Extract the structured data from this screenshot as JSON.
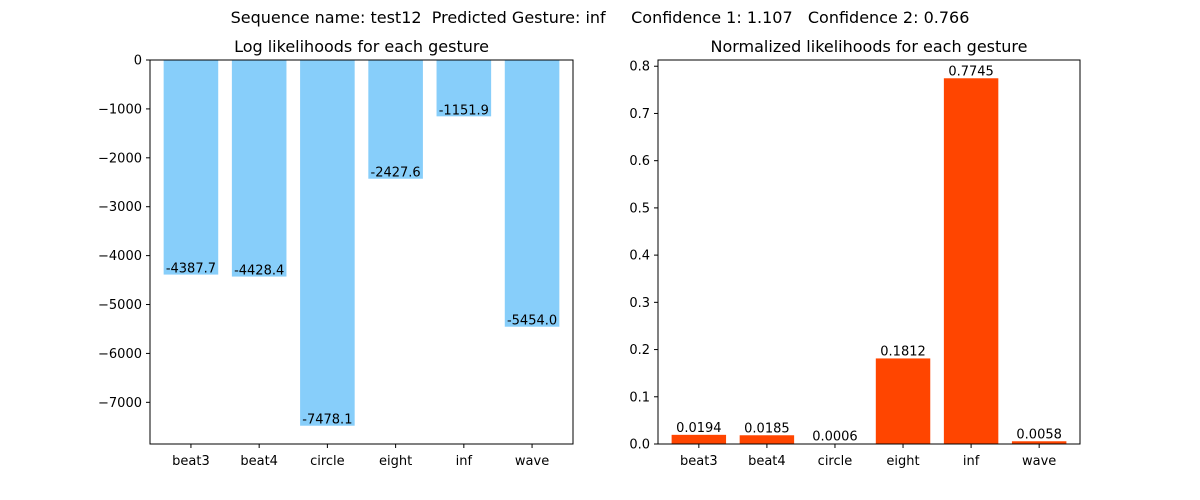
{
  "figure": {
    "suptitle": "Sequence name: test12  Predicted Gesture: inf     Confidence 1: 1.107   Confidence 2: 0.766"
  },
  "chart_data": [
    {
      "type": "bar",
      "title": "Log likelihoods for each gesture",
      "categories": [
        "beat3",
        "beat4",
        "circle",
        "eight",
        "inf",
        "wave"
      ],
      "values": [
        -4387.7,
        -4428.4,
        -7478.1,
        -2427.6,
        -1151.9,
        -5454.0
      ],
      "data_labels": [
        "-4387.7",
        "-4428.4",
        "-7478.1",
        "-2427.6",
        "-1151.9",
        "-5454.0"
      ],
      "ylim": [
        -7852,
        0
      ],
      "yticks": [
        0,
        -1000,
        -2000,
        -3000,
        -4000,
        -5000,
        -6000,
        -7000
      ],
      "ytick_labels": [
        "0",
        "−1000",
        "−2000",
        "−3000",
        "−4000",
        "−5000",
        "−6000",
        "−7000"
      ],
      "color": "#87CEFA",
      "label_position": "bottom"
    },
    {
      "type": "bar",
      "title": "Normalized likelihoods for each gesture",
      "categories": [
        "beat3",
        "beat4",
        "circle",
        "eight",
        "inf",
        "wave"
      ],
      "values": [
        0.0194,
        0.0185,
        0.0006,
        0.1812,
        0.7745,
        0.0058
      ],
      "data_labels": [
        "0.0194",
        "0.0185",
        "0.0006",
        "0.1812",
        "0.7745",
        "0.0058"
      ],
      "ylim": [
        0,
        0.8132
      ],
      "yticks": [
        0,
        0.1,
        0.2,
        0.3,
        0.4,
        0.5,
        0.6,
        0.7,
        0.8
      ],
      "ytick_labels": [
        "0.0",
        "0.1",
        "0.2",
        "0.3",
        "0.4",
        "0.5",
        "0.6",
        "0.7",
        "0.8"
      ],
      "color": "#FF4500",
      "label_position": "top"
    }
  ]
}
